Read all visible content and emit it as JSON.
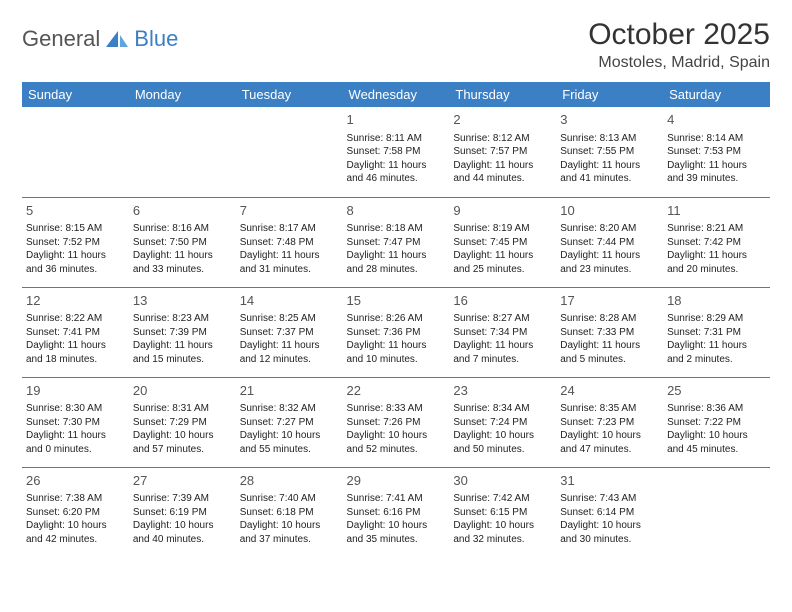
{
  "brand": {
    "part1": "General",
    "part2": "Blue"
  },
  "title": "October 2025",
  "location": "Mostoles, Madrid, Spain",
  "colors": {
    "accent": "#3b7fc4",
    "bg": "#ffffff",
    "text": "#222222",
    "muted": "#555555"
  },
  "day_headers": [
    "Sunday",
    "Monday",
    "Tuesday",
    "Wednesday",
    "Thursday",
    "Friday",
    "Saturday"
  ],
  "weeks": [
    [
      null,
      null,
      null,
      {
        "n": "1",
        "sr": "Sunrise: 8:11 AM",
        "ss": "Sunset: 7:58 PM",
        "dl1": "Daylight: 11 hours",
        "dl2": "and 46 minutes."
      },
      {
        "n": "2",
        "sr": "Sunrise: 8:12 AM",
        "ss": "Sunset: 7:57 PM",
        "dl1": "Daylight: 11 hours",
        "dl2": "and 44 minutes."
      },
      {
        "n": "3",
        "sr": "Sunrise: 8:13 AM",
        "ss": "Sunset: 7:55 PM",
        "dl1": "Daylight: 11 hours",
        "dl2": "and 41 minutes."
      },
      {
        "n": "4",
        "sr": "Sunrise: 8:14 AM",
        "ss": "Sunset: 7:53 PM",
        "dl1": "Daylight: 11 hours",
        "dl2": "and 39 minutes."
      }
    ],
    [
      {
        "n": "5",
        "sr": "Sunrise: 8:15 AM",
        "ss": "Sunset: 7:52 PM",
        "dl1": "Daylight: 11 hours",
        "dl2": "and 36 minutes."
      },
      {
        "n": "6",
        "sr": "Sunrise: 8:16 AM",
        "ss": "Sunset: 7:50 PM",
        "dl1": "Daylight: 11 hours",
        "dl2": "and 33 minutes."
      },
      {
        "n": "7",
        "sr": "Sunrise: 8:17 AM",
        "ss": "Sunset: 7:48 PM",
        "dl1": "Daylight: 11 hours",
        "dl2": "and 31 minutes."
      },
      {
        "n": "8",
        "sr": "Sunrise: 8:18 AM",
        "ss": "Sunset: 7:47 PM",
        "dl1": "Daylight: 11 hours",
        "dl2": "and 28 minutes."
      },
      {
        "n": "9",
        "sr": "Sunrise: 8:19 AM",
        "ss": "Sunset: 7:45 PM",
        "dl1": "Daylight: 11 hours",
        "dl2": "and 25 minutes."
      },
      {
        "n": "10",
        "sr": "Sunrise: 8:20 AM",
        "ss": "Sunset: 7:44 PM",
        "dl1": "Daylight: 11 hours",
        "dl2": "and 23 minutes."
      },
      {
        "n": "11",
        "sr": "Sunrise: 8:21 AM",
        "ss": "Sunset: 7:42 PM",
        "dl1": "Daylight: 11 hours",
        "dl2": "and 20 minutes."
      }
    ],
    [
      {
        "n": "12",
        "sr": "Sunrise: 8:22 AM",
        "ss": "Sunset: 7:41 PM",
        "dl1": "Daylight: 11 hours",
        "dl2": "and 18 minutes."
      },
      {
        "n": "13",
        "sr": "Sunrise: 8:23 AM",
        "ss": "Sunset: 7:39 PM",
        "dl1": "Daylight: 11 hours",
        "dl2": "and 15 minutes."
      },
      {
        "n": "14",
        "sr": "Sunrise: 8:25 AM",
        "ss": "Sunset: 7:37 PM",
        "dl1": "Daylight: 11 hours",
        "dl2": "and 12 minutes."
      },
      {
        "n": "15",
        "sr": "Sunrise: 8:26 AM",
        "ss": "Sunset: 7:36 PM",
        "dl1": "Daylight: 11 hours",
        "dl2": "and 10 minutes."
      },
      {
        "n": "16",
        "sr": "Sunrise: 8:27 AM",
        "ss": "Sunset: 7:34 PM",
        "dl1": "Daylight: 11 hours",
        "dl2": "and 7 minutes."
      },
      {
        "n": "17",
        "sr": "Sunrise: 8:28 AM",
        "ss": "Sunset: 7:33 PM",
        "dl1": "Daylight: 11 hours",
        "dl2": "and 5 minutes."
      },
      {
        "n": "18",
        "sr": "Sunrise: 8:29 AM",
        "ss": "Sunset: 7:31 PM",
        "dl1": "Daylight: 11 hours",
        "dl2": "and 2 minutes."
      }
    ],
    [
      {
        "n": "19",
        "sr": "Sunrise: 8:30 AM",
        "ss": "Sunset: 7:30 PM",
        "dl1": "Daylight: 11 hours",
        "dl2": "and 0 minutes."
      },
      {
        "n": "20",
        "sr": "Sunrise: 8:31 AM",
        "ss": "Sunset: 7:29 PM",
        "dl1": "Daylight: 10 hours",
        "dl2": "and 57 minutes."
      },
      {
        "n": "21",
        "sr": "Sunrise: 8:32 AM",
        "ss": "Sunset: 7:27 PM",
        "dl1": "Daylight: 10 hours",
        "dl2": "and 55 minutes."
      },
      {
        "n": "22",
        "sr": "Sunrise: 8:33 AM",
        "ss": "Sunset: 7:26 PM",
        "dl1": "Daylight: 10 hours",
        "dl2": "and 52 minutes."
      },
      {
        "n": "23",
        "sr": "Sunrise: 8:34 AM",
        "ss": "Sunset: 7:24 PM",
        "dl1": "Daylight: 10 hours",
        "dl2": "and 50 minutes."
      },
      {
        "n": "24",
        "sr": "Sunrise: 8:35 AM",
        "ss": "Sunset: 7:23 PM",
        "dl1": "Daylight: 10 hours",
        "dl2": "and 47 minutes."
      },
      {
        "n": "25",
        "sr": "Sunrise: 8:36 AM",
        "ss": "Sunset: 7:22 PM",
        "dl1": "Daylight: 10 hours",
        "dl2": "and 45 minutes."
      }
    ],
    [
      {
        "n": "26",
        "sr": "Sunrise: 7:38 AM",
        "ss": "Sunset: 6:20 PM",
        "dl1": "Daylight: 10 hours",
        "dl2": "and 42 minutes."
      },
      {
        "n": "27",
        "sr": "Sunrise: 7:39 AM",
        "ss": "Sunset: 6:19 PM",
        "dl1": "Daylight: 10 hours",
        "dl2": "and 40 minutes."
      },
      {
        "n": "28",
        "sr": "Sunrise: 7:40 AM",
        "ss": "Sunset: 6:18 PM",
        "dl1": "Daylight: 10 hours",
        "dl2": "and 37 minutes."
      },
      {
        "n": "29",
        "sr": "Sunrise: 7:41 AM",
        "ss": "Sunset: 6:16 PM",
        "dl1": "Daylight: 10 hours",
        "dl2": "and 35 minutes."
      },
      {
        "n": "30",
        "sr": "Sunrise: 7:42 AM",
        "ss": "Sunset: 6:15 PM",
        "dl1": "Daylight: 10 hours",
        "dl2": "and 32 minutes."
      },
      {
        "n": "31",
        "sr": "Sunrise: 7:43 AM",
        "ss": "Sunset: 6:14 PM",
        "dl1": "Daylight: 10 hours",
        "dl2": "and 30 minutes."
      },
      null
    ]
  ]
}
